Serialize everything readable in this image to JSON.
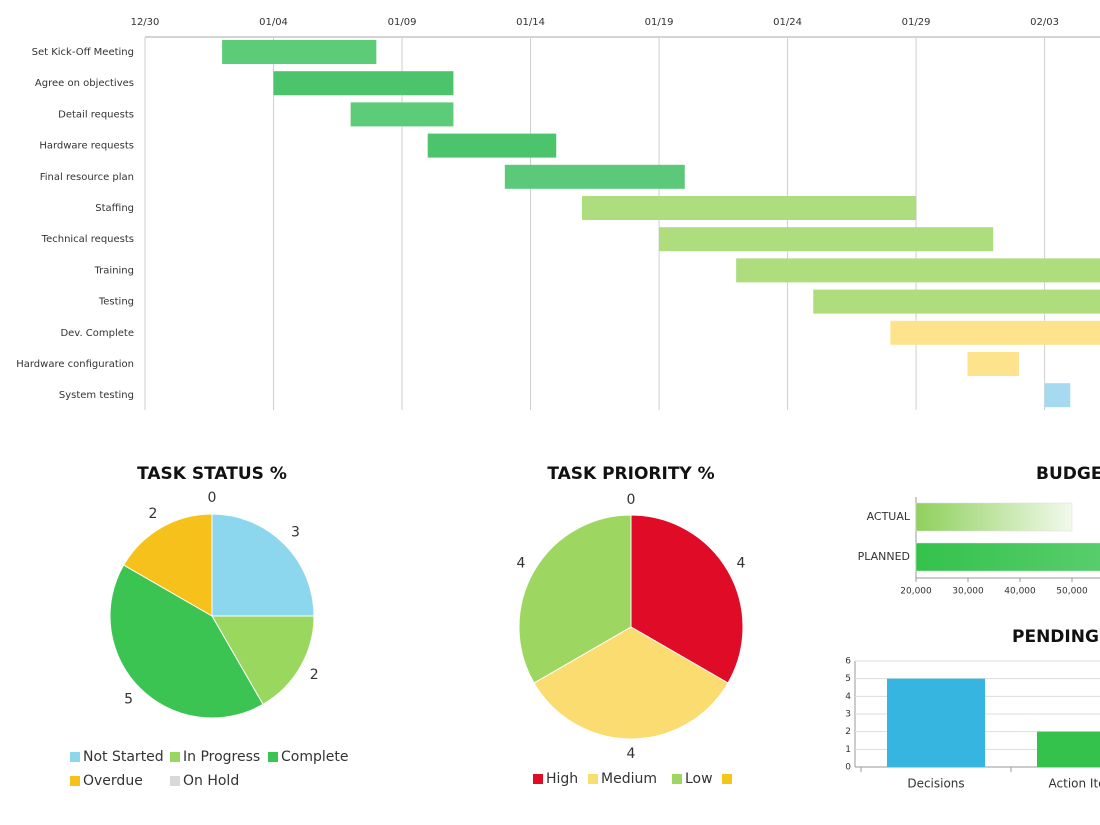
{
  "chart_data": [
    {
      "type": "gantt",
      "categories": [
        "Set Kick-Off Meeting",
        "Agree on objectives",
        "Detail requests",
        "Hardware requests",
        "Final resource plan",
        "Staffing",
        "Technical requests",
        "Training",
        "Testing",
        "Dev. Complete",
        "Hardware configuration",
        "System testing"
      ],
      "start": [
        3,
        5,
        8,
        11,
        14,
        17,
        20,
        23,
        26,
        29,
        32,
        35
      ],
      "end": [
        9,
        12,
        12,
        16,
        21,
        30,
        33,
        38,
        38,
        38,
        34,
        36
      ],
      "colors": [
        "#5ccc78",
        "#4cc46c",
        "#5ccc78",
        "#4cc46c",
        "#5cc87a",
        "#addd7c",
        "#addd7c",
        "#addd7c",
        "#addd7c",
        "#fde38c",
        "#fde38c",
        "#a6daf1"
      ],
      "xlim": [
        0,
        37
      ],
      "xticks": [
        {
          "value": 0,
          "label": "12/30"
        },
        {
          "value": 5,
          "label": "01/04"
        },
        {
          "value": 10,
          "label": "01/09"
        },
        {
          "value": 15,
          "label": "01/14"
        },
        {
          "value": 20,
          "label": "01/19"
        },
        {
          "value": 25,
          "label": "01/24"
        },
        {
          "value": 30,
          "label": "01/29"
        },
        {
          "value": 35,
          "label": "02/03"
        }
      ],
      "grid": true
    },
    {
      "type": "pie",
      "title": "TASK STATUS %",
      "categories": [
        "Not Started",
        "In Progress",
        "Complete",
        "Overdue",
        "On Hold"
      ],
      "values": [
        3,
        2,
        5,
        2,
        0
      ],
      "colors": [
        "#8dd7ee",
        "#9ad75e",
        "#3cc453",
        "#f5c11a",
        "#d9d9d9"
      ]
    },
    {
      "type": "pie",
      "title": "TASK PRIORITY %",
      "categories": [
        "High",
        "Medium",
        "Low",
        null
      ],
      "values": [
        4,
        4,
        4,
        0
      ],
      "colors": [
        "#e00b26",
        "#fbdc70",
        "#9dd762",
        "#f5c518"
      ]
    },
    {
      "type": "hbar",
      "title": "BUDGET",
      "categories": [
        "ACTUAL",
        "PLANNED"
      ],
      "values": [
        50000,
        60000
      ],
      "colors": [
        "#8fd05c",
        "#34c24c"
      ],
      "xlim": [
        20000,
        60000
      ],
      "xticks": [
        {
          "value": 20000,
          "label": "20,000"
        },
        {
          "value": 30000,
          "label": "30,000"
        },
        {
          "value": 40000,
          "label": "40,000"
        },
        {
          "value": 50000,
          "label": "50,000"
        }
      ]
    },
    {
      "type": "bar",
      "title": "PENDING",
      "categories": [
        "Decisions",
        "Action Items"
      ],
      "values": [
        5,
        2
      ],
      "colors": [
        "#35b5e0",
        "#34c24c"
      ],
      "ylim": [
        0,
        6
      ],
      "yticks": [
        0,
        1,
        2,
        3,
        4,
        5,
        6
      ],
      "grid": true
    }
  ]
}
